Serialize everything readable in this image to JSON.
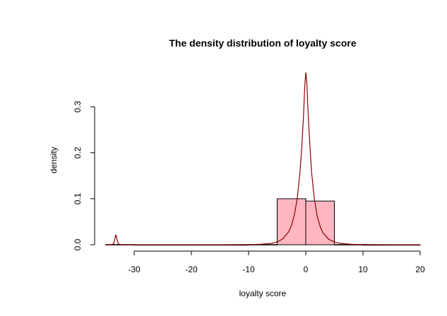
{
  "chart_data": {
    "type": "histogram",
    "title": "The density distribution of loyalty score",
    "xlabel": "loyalty score",
    "ylabel": "density",
    "xlim": [
      -35,
      20
    ],
    "ylim": [
      0,
      0.38
    ],
    "x_ticks": [
      -30,
      -20,
      -10,
      0,
      10,
      20
    ],
    "x_tick_labels": [
      "-30",
      "-20",
      "-10",
      "0",
      "10",
      "20"
    ],
    "y_ticks": [
      0.0,
      0.1,
      0.2,
      0.3
    ],
    "y_tick_labels": [
      "0.0",
      "0.1",
      "0.2",
      "0.3"
    ],
    "grid": false,
    "legend": "none",
    "bins": [
      {
        "start": -35,
        "end": -30,
        "density": 0.0005
      },
      {
        "start": -30,
        "end": -25,
        "density": 0.0
      },
      {
        "start": -25,
        "end": -20,
        "density": 0.0
      },
      {
        "start": -20,
        "end": -15,
        "density": 0.0
      },
      {
        "start": -15,
        "end": -10,
        "density": 0.0
      },
      {
        "start": -10,
        "end": -5,
        "density": 0.0005
      },
      {
        "start": -5,
        "end": 0,
        "density": 0.1
      },
      {
        "start": 0,
        "end": 5,
        "density": 0.095
      },
      {
        "start": 5,
        "end": 10,
        "density": 0.0005
      },
      {
        "start": 10,
        "end": 15,
        "density": 0.0
      },
      {
        "start": 15,
        "end": 20,
        "density": 0.0
      }
    ],
    "density_curve": {
      "x": [
        -35,
        -34,
        -33.6,
        -33.4,
        -33.2,
        -33.0,
        -32.8,
        -32.5,
        -32,
        -30,
        -25,
        -20,
        -15,
        -10,
        -8,
        -6,
        -5,
        -4,
        -3,
        -2.5,
        -2,
        -1.5,
        -1,
        -0.7,
        -0.4,
        -0.2,
        0,
        0.2,
        0.4,
        0.7,
        1,
        1.5,
        2,
        2.5,
        3,
        4,
        5,
        6,
        8,
        10,
        15,
        20
      ],
      "y": [
        0.0,
        0.0,
        0.002,
        0.012,
        0.022,
        0.012,
        0.003,
        0.0,
        0.0,
        0.0,
        0.0,
        0.0,
        0.0,
        0.0005,
        0.001,
        0.003,
        0.006,
        0.013,
        0.028,
        0.042,
        0.065,
        0.1,
        0.16,
        0.21,
        0.28,
        0.34,
        0.375,
        0.35,
        0.29,
        0.22,
        0.16,
        0.1,
        0.062,
        0.04,
        0.026,
        0.012,
        0.006,
        0.003,
        0.001,
        0.0005,
        0.0,
        0.0
      ]
    },
    "colors": {
      "bar_fill": "#ffb6c1",
      "bar_stroke": "#000000",
      "curve": "#8b0000",
      "axis": "#000000"
    }
  }
}
